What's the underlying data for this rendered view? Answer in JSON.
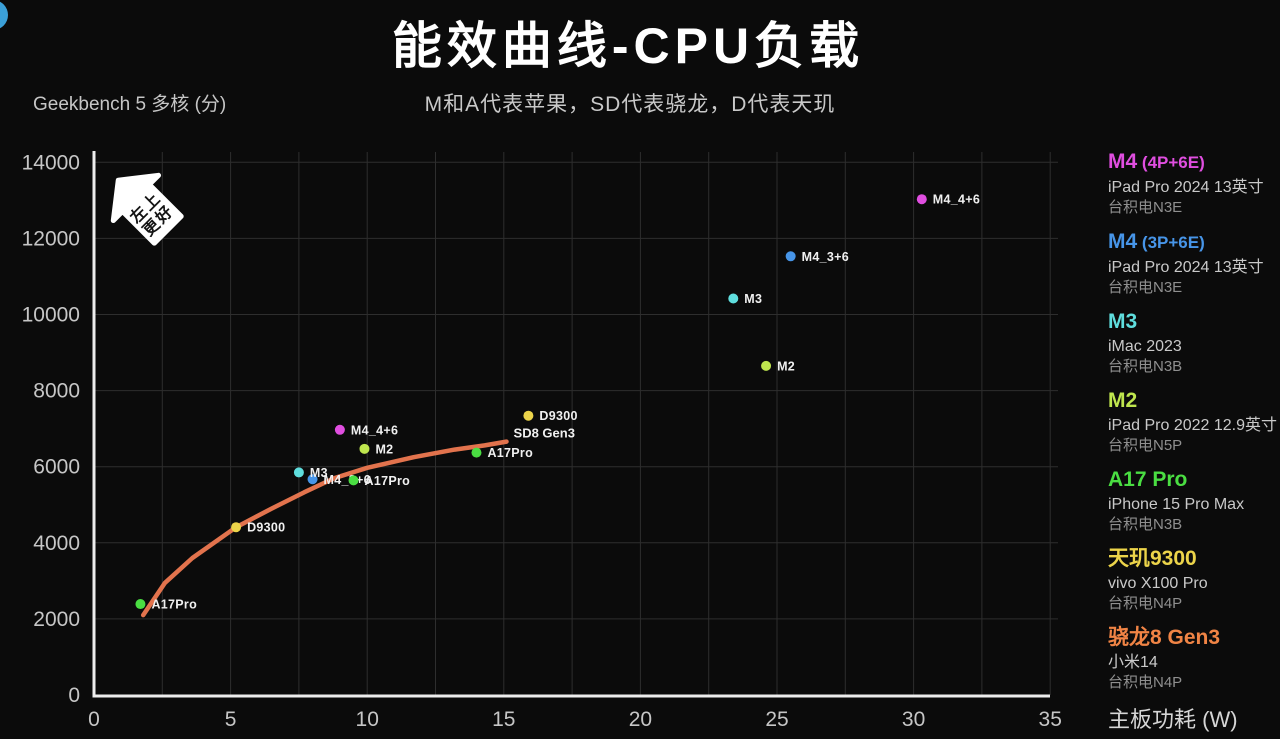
{
  "header": {
    "title": "能效曲线-CPU负载",
    "subtitle": "M和A代表苹果，SD代表骁龙，D代表天玑",
    "score_axis_label": "Geekbench 5 多核 (分)",
    "power_axis_label": "主板功耗 (W)"
  },
  "chart_data": {
    "type": "scatter",
    "title": "能效曲线-CPU负载",
    "xlabel": "主板功耗 (W)",
    "ylabel": "Geekbench 5 多核 (分)",
    "xlim": [
      0,
      35
    ],
    "ylim": [
      0,
      14000
    ],
    "x_ticks": [
      0,
      5,
      10,
      15,
      20,
      25,
      30,
      35
    ],
    "y_ticks": [
      0,
      2000,
      4000,
      6000,
      8000,
      10000,
      12000,
      14000
    ],
    "x_grid_step": 2.5,
    "grid": true,
    "legend_position": "right",
    "annotation_badge": {
      "line1": "左上",
      "line2": "更好"
    },
    "series": [
      {
        "name": "M4_4+6",
        "color": "#e04ee0",
        "points": [
          {
            "x": 9.0,
            "y": 6970,
            "label": "M4_4+6"
          },
          {
            "x": 30.3,
            "y": 13030,
            "label": "M4_4+6"
          }
        ]
      },
      {
        "name": "M4_3+6",
        "color": "#4795e8",
        "points": [
          {
            "x": 8.0,
            "y": 5670,
            "label": "M4_3+6"
          },
          {
            "x": 25.5,
            "y": 11530,
            "label": "M4_3+6"
          }
        ]
      },
      {
        "name": "M3",
        "color": "#5fdede",
        "points": [
          {
            "x": 7.5,
            "y": 5850,
            "label": "M3"
          },
          {
            "x": 23.4,
            "y": 10420,
            "label": "M3"
          }
        ]
      },
      {
        "name": "M2",
        "color": "#bfe64e",
        "points": [
          {
            "x": 9.9,
            "y": 6470,
            "label": "M2"
          },
          {
            "x": 24.6,
            "y": 8650,
            "label": "M2"
          }
        ]
      },
      {
        "name": "A17Pro",
        "color": "#4ade42",
        "points": [
          {
            "x": 1.7,
            "y": 2390,
            "label": "A17Pro"
          },
          {
            "x": 9.5,
            "y": 5640,
            "label": "A17Pro"
          },
          {
            "x": 14.0,
            "y": 6370,
            "label": "A17Pro"
          }
        ]
      },
      {
        "name": "D9300",
        "color": "#ecd44a",
        "points": [
          {
            "x": 5.2,
            "y": 4410,
            "label": "D9300"
          },
          {
            "x": 15.9,
            "y": 7340,
            "label": "D9300"
          }
        ]
      }
    ],
    "curve": {
      "name": "SD8 Gen3",
      "label": "SD8 Gen3",
      "color": "#e2734d",
      "points": [
        [
          1.8,
          2100
        ],
        [
          2.6,
          2950
        ],
        [
          3.6,
          3600
        ],
        [
          5.2,
          4410
        ],
        [
          6.5,
          4900
        ],
        [
          7.7,
          5330
        ],
        [
          8.8,
          5700
        ],
        [
          10.0,
          5970
        ],
        [
          11.7,
          6250
        ],
        [
          13.2,
          6450
        ],
        [
          14.3,
          6560
        ],
        [
          15.1,
          6660
        ]
      ]
    }
  },
  "legend": {
    "items": [
      {
        "name": "M4",
        "suffix": "(4P+6E)",
        "color": "#e04ee0",
        "device": "iPad Pro 2024 13英寸",
        "process": "台积电N3E"
      },
      {
        "name": "M4",
        "suffix": "(3P+6E)",
        "color": "#4795e8",
        "device": "iPad Pro 2024 13英寸",
        "process": "台积电N3E"
      },
      {
        "name": "M3",
        "suffix": "",
        "color": "#5fdede",
        "device": "iMac 2023",
        "process": "台积电N3B"
      },
      {
        "name": "M2",
        "suffix": "",
        "color": "#bfe64e",
        "device": "iPad Pro 2022 12.9英寸",
        "process": "台积电N5P"
      },
      {
        "name": "A17 Pro",
        "suffix": "",
        "color": "#4ade42",
        "device": "iPhone 15 Pro Max",
        "process": "台积电N3B"
      },
      {
        "name": "天玑9300",
        "suffix": "",
        "color": "#ecd44a",
        "device": "vivo X100 Pro",
        "process": "台积电N4P"
      },
      {
        "name": "骁龙8 Gen3",
        "suffix": "",
        "color": "#f08445",
        "device": "小米14",
        "process": "台积电N4P"
      }
    ]
  }
}
